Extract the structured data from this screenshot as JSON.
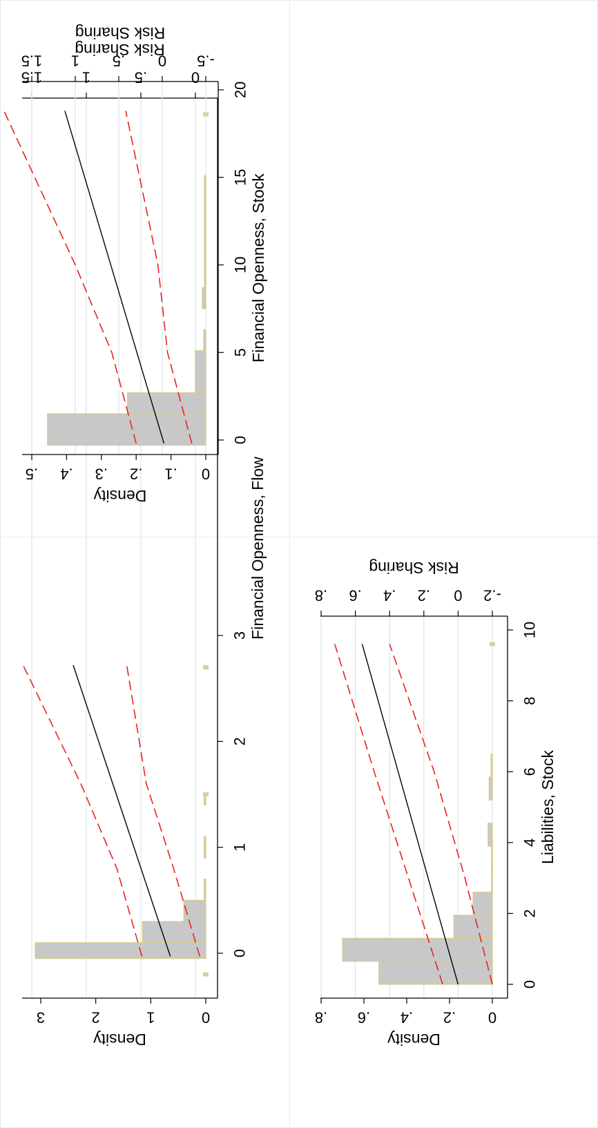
{
  "style": {
    "grid_color": "#dde9ec",
    "bar_fill": "#c8c8c8",
    "bar_stroke": "#d9cc86",
    "fit_color": "#000000",
    "ci_color": "#e8221e",
    "rug_color": "#d9cfa0"
  },
  "chart_data": [
    {
      "id": "flow",
      "type": "bar",
      "orientation": "rotated-90-clockwise",
      "title": "",
      "xlabel": "Financial Openness, Flow",
      "ylabel_left": "Density",
      "ylabel_right": "Risk Sharing",
      "xlim": [
        -0.35,
        3.2
      ],
      "x_ticks": [
        0,
        1,
        2,
        3
      ],
      "x_tick_labels": [
        "0",
        "1",
        "2",
        "3"
      ],
      "ylim_density": [
        -0.1,
        3.2
      ],
      "density_ticks": [
        0,
        1,
        2,
        3
      ],
      "density_tick_labels": [
        "0",
        "1",
        "2",
        "3"
      ],
      "ylim_risk": [
        -0.05,
        1.6
      ],
      "risk_ticks": [
        0,
        0.5,
        1,
        1.5
      ],
      "risk_tick_labels": [
        "0",
        ".5",
        "1",
        "1.5"
      ],
      "grid": true,
      "histogram": [
        {
          "x0": -0.05,
          "x1": 0.1,
          "density": 3.1
        },
        {
          "x0": 0.1,
          "x1": 0.3,
          "density": 1.15
        },
        {
          "x0": 0.3,
          "x1": 0.5,
          "density": 0.4
        },
        {
          "x0": 0.5,
          "x1": 0.7,
          "density": 0.03
        },
        {
          "x0": 0.9,
          "x1": 1.1,
          "density": 0.03
        },
        {
          "x0": 1.4,
          "x1": 1.5,
          "density": 0.03
        }
      ],
      "rug_x": [
        -0.2,
        1.5,
        2.7
      ],
      "fit": {
        "x": [
          -0.03,
          2.72
        ],
        "y": [
          0.23,
          1.12
        ]
      },
      "ci_upper": {
        "x": [
          -0.03,
          0.8,
          1.6,
          2.72
        ],
        "y": [
          0.49,
          0.72,
          1.05,
          1.58
        ]
      },
      "ci_lower": {
        "x": [
          -0.03,
          0.8,
          1.6,
          2.72
        ],
        "y": [
          -0.04,
          0.2,
          0.45,
          0.63
        ]
      }
    },
    {
      "id": "stock",
      "type": "bar",
      "orientation": "rotated-90-clockwise",
      "title": "",
      "xlabel": "Financial Openness, Stock",
      "ylabel_left": "Density",
      "ylabel_right": "Risk Sharing",
      "xlim": [
        -1.5,
        20.5
      ],
      "x_ticks": [
        0,
        5,
        10,
        15,
        20
      ],
      "x_tick_labels": [
        "0",
        "5",
        "10",
        "15",
        "20"
      ],
      "ylim_density": [
        -0.02,
        0.52
      ],
      "density_ticks": [
        0,
        0.1,
        0.2,
        0.3,
        0.4,
        0.5
      ],
      "density_tick_labels": [
        "0",
        ".1",
        ".2",
        ".3",
        ".4",
        ".5"
      ],
      "ylim_risk": [
        -0.6,
        1.55
      ],
      "risk_ticks": [
        -0.5,
        0,
        0.5,
        1,
        1.5
      ],
      "risk_tick_labels": [
        "-.5",
        "0",
        ".5",
        "1",
        "1.5"
      ],
      "grid": true,
      "histogram": [
        {
          "x0": -0.3,
          "x1": 1.5,
          "density": 0.455
        },
        {
          "x0": 1.5,
          "x1": 2.7,
          "density": 0.225
        },
        {
          "x0": 2.7,
          "x1": 3.9,
          "density": 0.03
        },
        {
          "x0": 3.9,
          "x1": 5.1,
          "density": 0.03
        },
        {
          "x0": 5.1,
          "x1": 6.3,
          "density": 0.006
        },
        {
          "x0": 7.5,
          "x1": 8.7,
          "density": 0.01
        },
        {
          "x0": 8.7,
          "x1": 9.9,
          "density": 0.004
        },
        {
          "x0": 9.9,
          "x1": 11.1,
          "density": 0.004
        },
        {
          "x0": 11.1,
          "x1": 12.3,
          "density": 0.004
        },
        {
          "x0": 12.3,
          "x1": 13.5,
          "density": 0.004
        },
        {
          "x0": 13.5,
          "x1": 15.1,
          "density": 0.004
        }
      ],
      "rug_x": [
        18.6
      ],
      "fit": {
        "x": [
          -0.2,
          18.8
        ],
        "y": [
          -0.02,
          1.12
        ]
      },
      "ci_upper": {
        "x": [
          -0.2,
          5,
          10,
          18.8
        ],
        "y": [
          0.3,
          0.58,
          1.0,
          1.82
        ]
      },
      "ci_lower": {
        "x": [
          -0.2,
          5,
          10,
          18.8
        ],
        "y": [
          -0.34,
          -0.06,
          0.05,
          0.42
        ]
      }
    },
    {
      "id": "liabilities",
      "type": "bar",
      "orientation": "rotated-90-clockwise",
      "title": "",
      "xlabel": "Liabilities, Stock",
      "ylabel_left": "Density",
      "ylabel_right": "Risk Sharing",
      "xlim": [
        -0.9,
        10.5
      ],
      "x_ticks": [
        0,
        2,
        4,
        6,
        8,
        10
      ],
      "x_tick_labels": [
        "0",
        "2",
        "4",
        "6",
        "8",
        "10"
      ],
      "ylim_density": [
        -0.02,
        0.82
      ],
      "density_ticks": [
        0,
        0.2,
        0.4,
        0.6,
        0.8
      ],
      "density_tick_labels": [
        "0",
        ".2",
        ".4",
        ".6",
        ".8"
      ],
      "ylim_risk": [
        -0.27,
        0.82
      ],
      "risk_ticks": [
        -0.2,
        0,
        0.2,
        0.4,
        0.6,
        0.8
      ],
      "risk_tick_labels": [
        "-.2",
        "0",
        ".2",
        ".4",
        ".6",
        ".8"
      ],
      "grid": true,
      "histogram": [
        {
          "x0": 0.0,
          "x1": 0.65,
          "density": 0.53
        },
        {
          "x0": 0.65,
          "x1": 1.3,
          "density": 0.7
        },
        {
          "x0": 1.3,
          "x1": 1.95,
          "density": 0.18
        },
        {
          "x0": 1.95,
          "x1": 2.6,
          "density": 0.09
        },
        {
          "x0": 2.6,
          "x1": 3.25,
          "density": 0.004
        },
        {
          "x0": 3.25,
          "x1": 3.9,
          "density": 0.004
        },
        {
          "x0": 3.9,
          "x1": 4.55,
          "density": 0.02
        },
        {
          "x0": 5.2,
          "x1": 5.85,
          "density": 0.015
        },
        {
          "x0": 5.85,
          "x1": 6.5,
          "density": 0.006
        }
      ],
      "rug_x": [
        9.6
      ],
      "fit": {
        "x": [
          0.0,
          9.6
        ],
        "y": [
          0.0,
          0.56
        ]
      },
      "ci_upper": {
        "x": [
          0.0,
          3.0,
          6.0,
          9.6
        ],
        "y": [
          0.09,
          0.29,
          0.49,
          0.72
        ]
      },
      "ci_lower": {
        "x": [
          0.0,
          3.0,
          6.0,
          9.6
        ],
        "y": [
          -0.2,
          -0.04,
          0.14,
          0.4
        ]
      }
    }
  ]
}
